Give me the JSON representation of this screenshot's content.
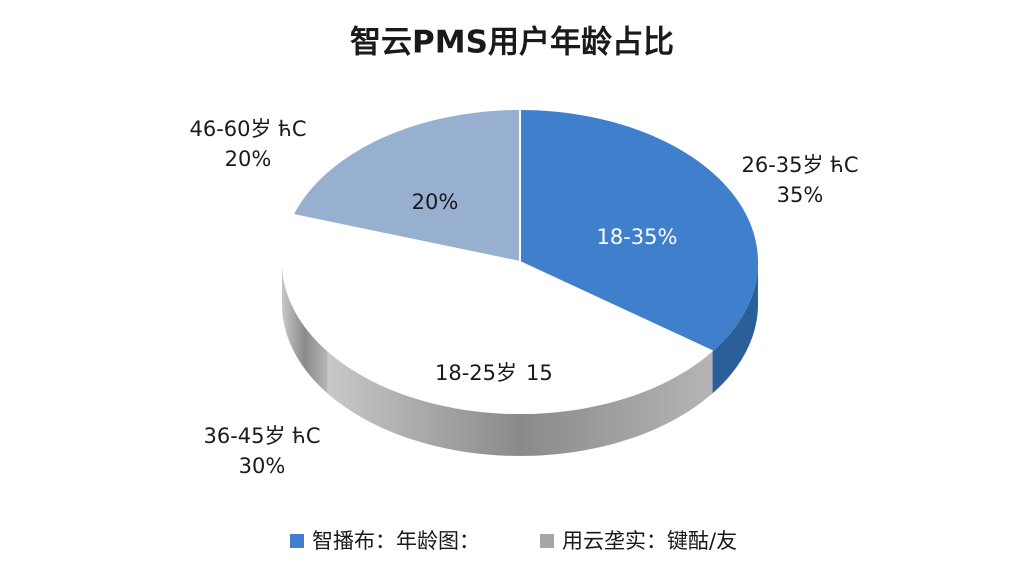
{
  "chart_data": {
    "type": "pie",
    "title": "智云PMS用户年龄占比",
    "categories": [
      "26-35岁 ћC",
      "36-45岁 ћC",
      "18-25岁",
      "46-60岁 ћC"
    ],
    "values": [
      35,
      30,
      15,
      20
    ],
    "value_labels": [
      "35%",
      "30%",
      "15",
      "20%"
    ],
    "colors": [
      "#3f7fcb",
      "#ffffff",
      "#ffffff",
      "#97b0cf"
    ],
    "annotations": [
      "18-35%",
      "20%"
    ],
    "legend": [
      {
        "label": "智播布：年龄图：",
        "color": "#3f7fcb"
      },
      {
        "label": "用云垄实：键酤/友",
        "color": "#a6a6a6"
      }
    ]
  }
}
